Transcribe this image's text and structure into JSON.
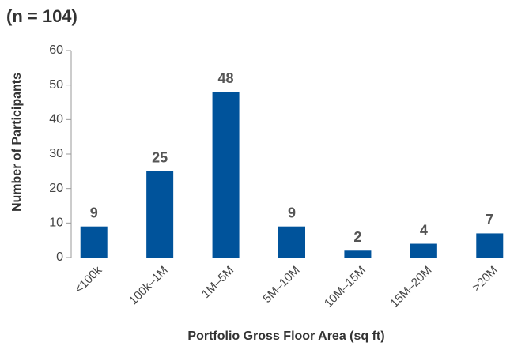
{
  "chart_data": {
    "type": "bar",
    "title": "(n = 104)",
    "x_label": "Portfolio Gross Floor Area (sq ft)",
    "y_label": "Number of Participants",
    "categories": [
      "<100k",
      "100k–1M",
      "1M–5M",
      "5M–10M",
      "10M–15M",
      "15M–20M",
      ">20M"
    ],
    "values": [
      9,
      25,
      48,
      9,
      2,
      4,
      7
    ],
    "color": "#00539b",
    "ylim": [
      0,
      60
    ],
    "yticks": [
      0,
      10,
      20,
      30,
      40,
      50,
      60
    ],
    "grid": false
  }
}
